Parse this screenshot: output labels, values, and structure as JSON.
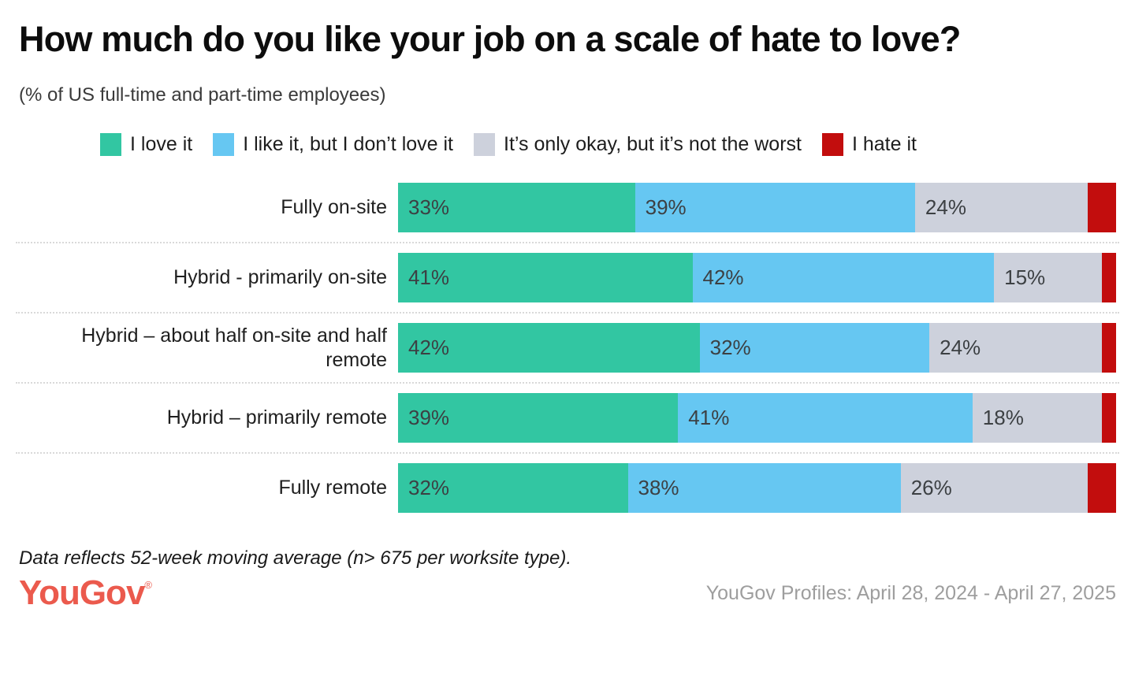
{
  "header": {
    "title": "How much do you like your job on a scale of hate to love?",
    "subtitle": "(% of US full-time and part-time employees)"
  },
  "footer": {
    "footnote": "Data reflects 52-week moving average (n> 675 per worksite type).",
    "logo_text": "YouGov",
    "logo_registered_mark": "®",
    "source": "YouGov Profiles: April 28, 2024 - April 27, 2025"
  },
  "colors": {
    "love": "#32c6a2",
    "like": "#66c7f2",
    "okay": "#cdd1dc",
    "hate": "#c20d0d",
    "logo": "#eb5a4d",
    "separator": "#d9d9d9"
  },
  "chart_data": {
    "type": "bar",
    "stacked": true,
    "orientation": "horizontal",
    "unit": "%",
    "title": "How much do you like your job on a scale of hate to love?",
    "subtitle": "(% of US full-time and part-time employees)",
    "xlabel": "",
    "ylabel": "",
    "xlim": [
      0,
      100
    ],
    "grid": false,
    "legend_position": "top",
    "categories": [
      "Fully on-site",
      "Hybrid - primarily on-site",
      "Hybrid – about half on-site and half remote",
      "Hybrid – primarily remote",
      "Fully remote"
    ],
    "series": [
      {
        "key": "love",
        "name": "I love it",
        "color": "#32c6a2",
        "labeled": true,
        "values": [
          33,
          41,
          42,
          39,
          32
        ]
      },
      {
        "key": "like",
        "name": "I like it, but I don’t love it",
        "color": "#66c7f2",
        "labeled": true,
        "values": [
          39,
          42,
          32,
          41,
          38
        ]
      },
      {
        "key": "okay",
        "name": "It’s only okay, but it’s not the worst",
        "color": "#cdd1dc",
        "labeled": true,
        "values": [
          24,
          15,
          24,
          18,
          26
        ]
      },
      {
        "key": "hate",
        "name": "I hate it",
        "color": "#c20d0d",
        "labeled": false,
        "values": [
          4,
          2,
          2,
          2,
          4
        ]
      }
    ]
  }
}
